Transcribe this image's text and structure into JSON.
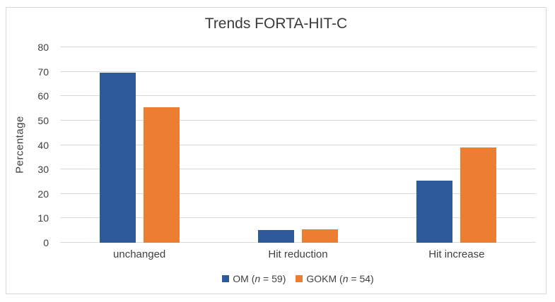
{
  "window": {
    "background": "#ffffff",
    "frame_border_color": "#d9d9d9"
  },
  "chart_data": {
    "type": "bar",
    "title": "Trends FORTA-HIT-C",
    "xlabel": "",
    "ylabel": "Percentage",
    "categories": [
      "unchanged",
      "Hit reduction",
      "Hit increase"
    ],
    "series": [
      {
        "name": "OM (n = 59)",
        "color": "#2e5a9c",
        "values": [
          69.5,
          5.1,
          25.4
        ]
      },
      {
        "name": "GOKM (n = 54)",
        "color": "#ed7d31",
        "values": [
          55.6,
          5.6,
          38.9
        ]
      }
    ],
    "ylim": [
      0,
      80
    ],
    "yticks": [
      0,
      10,
      20,
      30,
      40,
      50,
      60,
      70,
      80
    ],
    "grid": "horizontal",
    "gridline_color": "#d9d9d9",
    "legend_position": "bottom"
  },
  "legend": {
    "items": [
      {
        "pre": "OM (",
        "n": "n",
        "post": " = 59)",
        "color": "#2e5a9c"
      },
      {
        "pre": "GOKM (",
        "n": "n",
        "post": " = 54)",
        "color": "#ed7d31"
      }
    ]
  }
}
